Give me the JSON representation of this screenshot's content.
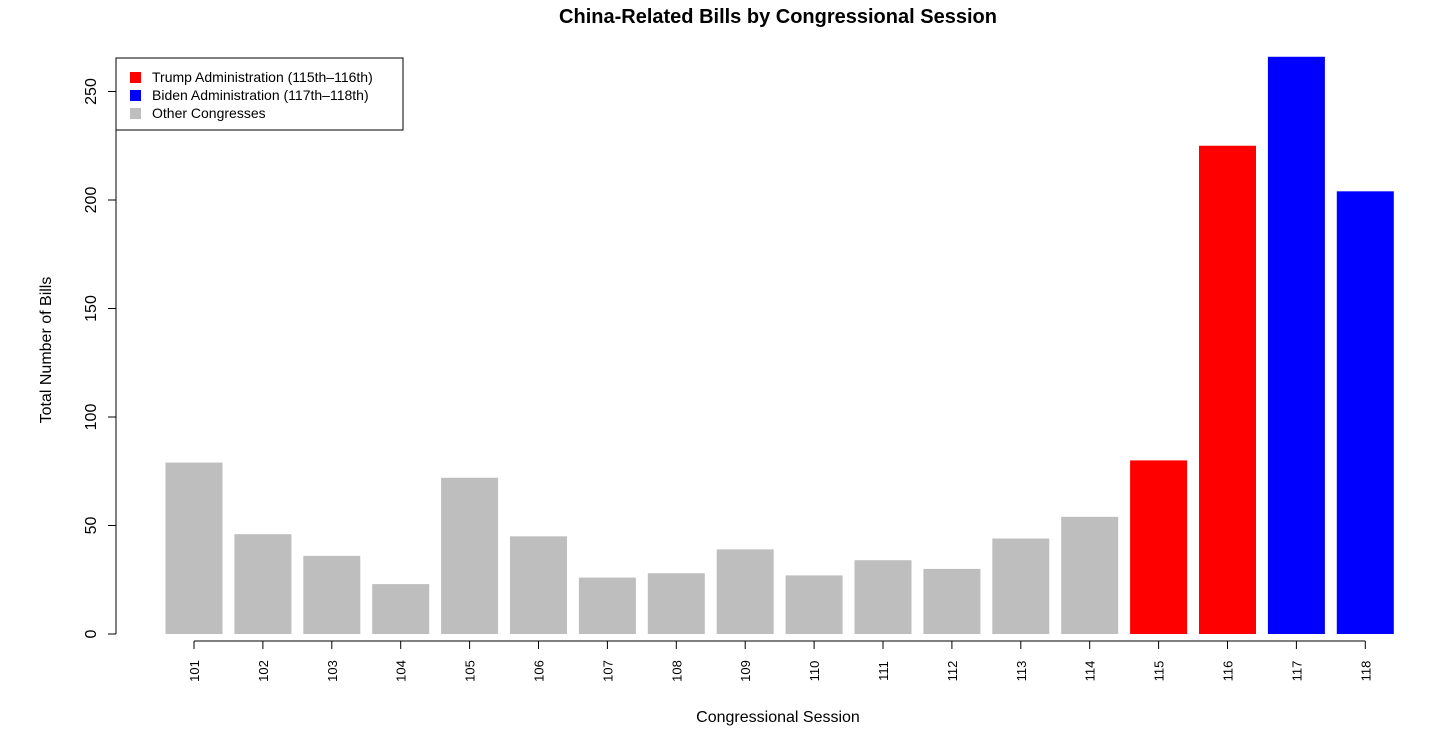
{
  "chart_data": {
    "type": "bar",
    "title": "China-Related Bills by Congressional Session",
    "xlabel": "Congressional Session",
    "ylabel": "Total Number of Bills",
    "categories": [
      "101",
      "102",
      "103",
      "104",
      "105",
      "106",
      "107",
      "108",
      "109",
      "110",
      "111",
      "112",
      "113",
      "114",
      "115",
      "116",
      "117",
      "118"
    ],
    "values": [
      79,
      46,
      36,
      23,
      72,
      45,
      26,
      28,
      39,
      27,
      34,
      30,
      44,
      54,
      80,
      225,
      266,
      204
    ],
    "bar_groups": [
      "other",
      "other",
      "other",
      "other",
      "other",
      "other",
      "other",
      "other",
      "other",
      "other",
      "other",
      "other",
      "other",
      "other",
      "trump",
      "trump",
      "biden",
      "biden"
    ],
    "yticks": [
      0,
      50,
      100,
      150,
      200,
      250
    ],
    "ylim": [
      0,
      266
    ],
    "grid": false,
    "legend": {
      "position": "top-left",
      "entries": [
        {
          "key": "trump",
          "label": "Trump Administration (115th–116th)",
          "color": "#ff0000"
        },
        {
          "key": "biden",
          "label": "Biden Administration (117th–118th)",
          "color": "#0000ff"
        },
        {
          "key": "other",
          "label": "Other Congresses",
          "color": "#bebebe"
        }
      ]
    }
  }
}
